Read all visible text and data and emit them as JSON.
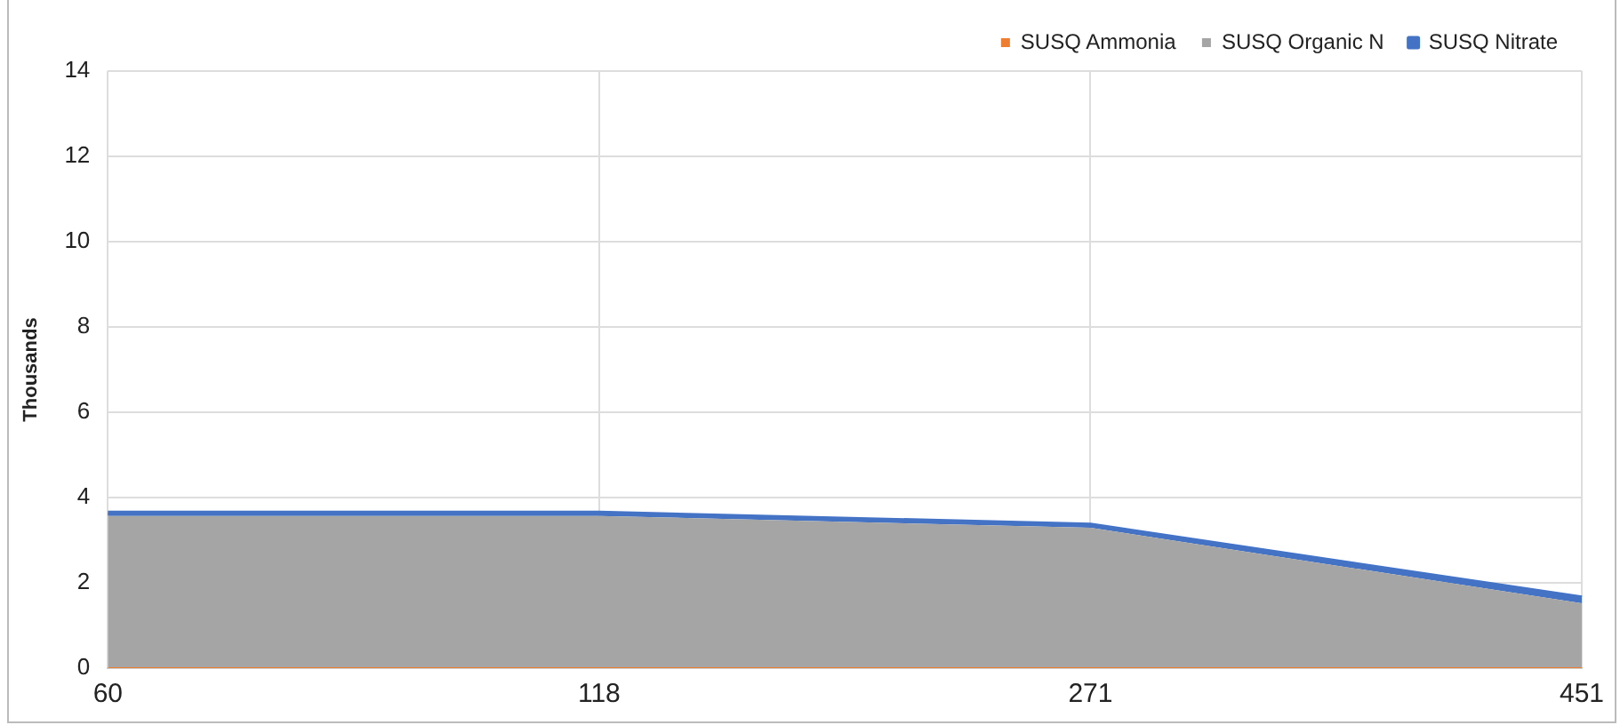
{
  "chart_data": {
    "type": "area",
    "ylabel": "Thousands",
    "categories": [
      "60",
      "118",
      "271",
      "451"
    ],
    "stacked": true,
    "series": [
      {
        "name": "SUSQ Ammonia",
        "color": "#ed7d31",
        "values": [
          0.02,
          0.02,
          0.02,
          0.02
        ]
      },
      {
        "name": "SUSQ Organic N",
        "color": "#a5a5a5",
        "values": [
          3.55,
          3.55,
          3.27,
          1.5
        ]
      },
      {
        "name": "SUSQ Nitrate",
        "color": "#4472c4",
        "values": [
          0.07,
          0.07,
          0.07,
          0.13
        ]
      }
    ],
    "ylim": [
      0,
      14
    ],
    "yticks": [
      0,
      2,
      4,
      6,
      8,
      10,
      12,
      14
    ],
    "grid": true,
    "legend": "top right"
  }
}
